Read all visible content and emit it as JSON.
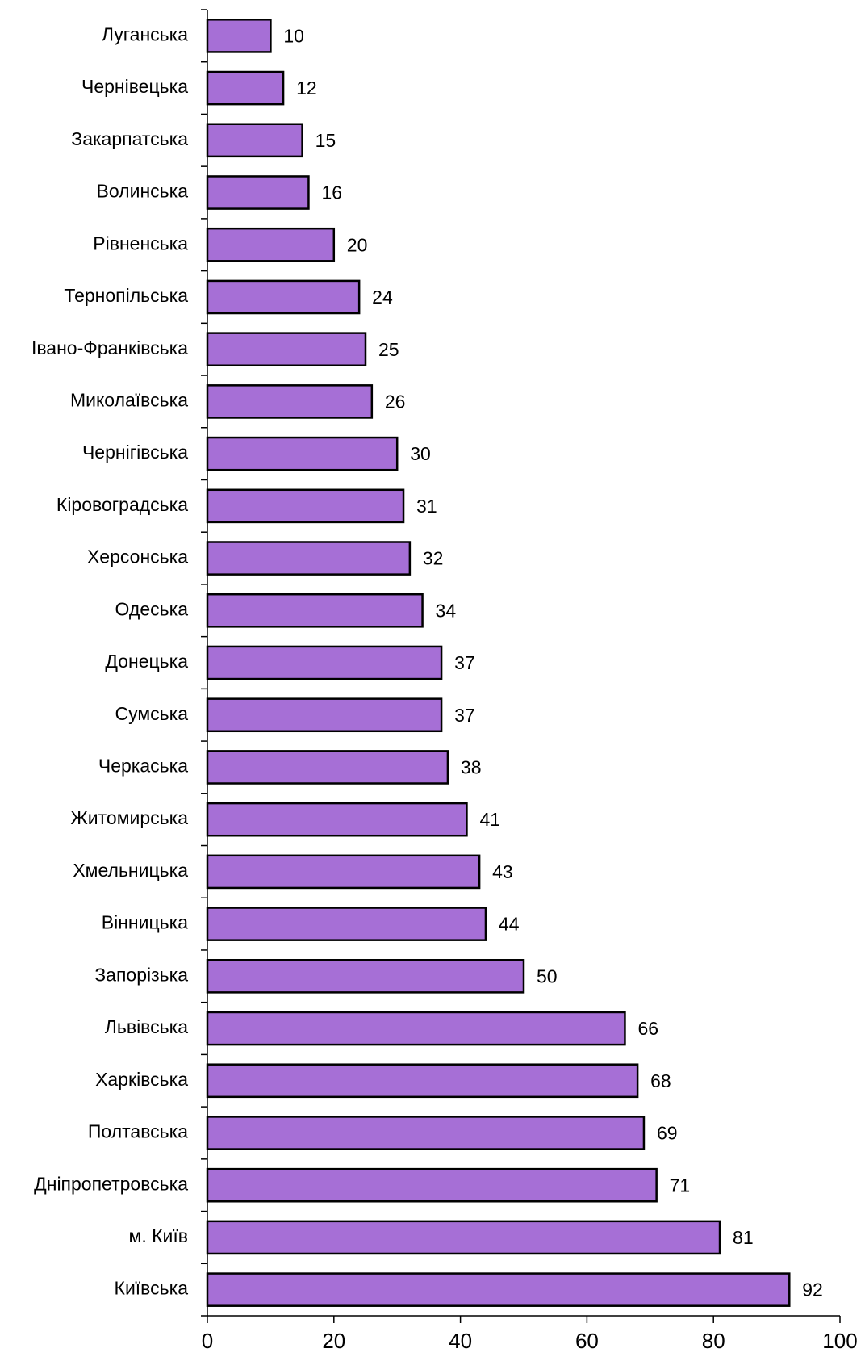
{
  "chart_data": {
    "type": "bar",
    "orientation": "horizontal",
    "categories": [
      "Луганська",
      "Чернівецька",
      "Закарпатська",
      "Волинська",
      "Рівненська",
      "Тернопільська",
      "Івано-Франківська",
      "Миколаївська",
      "Чернігівська",
      "Кіровоградська",
      "Херсонська",
      "Одеська",
      "Донецька",
      "Сумська",
      "Черкаська",
      "Житомирська",
      "Хмельницька",
      "Вінницька",
      "Запорізька",
      "Львівська",
      "Харківська",
      "Полтавська",
      "Дніпропетровська",
      "м. Київ",
      "Київська"
    ],
    "values": [
      10,
      12,
      15,
      16,
      20,
      24,
      25,
      26,
      30,
      31,
      32,
      34,
      37,
      37,
      38,
      41,
      43,
      44,
      50,
      66,
      68,
      69,
      71,
      81,
      92
    ],
    "value_labels": [
      "10",
      "12",
      "15",
      "16",
      "20",
      "24",
      "25",
      "26",
      "30",
      "31",
      "32",
      "34",
      "37",
      "37",
      "38",
      "41",
      "43",
      "44",
      "50",
      "66",
      "68",
      "69",
      "71",
      "81",
      "92"
    ],
    "xlim": [
      0,
      100
    ],
    "xticks": [
      0,
      20,
      40,
      60,
      80,
      100
    ],
    "xtick_labels": [
      "0",
      "20",
      "40",
      "60",
      "80",
      "100"
    ],
    "title": "",
    "xlabel": "",
    "ylabel": "",
    "grid": false,
    "legend": false,
    "bar_color": "#a66fd6",
    "bar_edge_color": "#000000"
  }
}
